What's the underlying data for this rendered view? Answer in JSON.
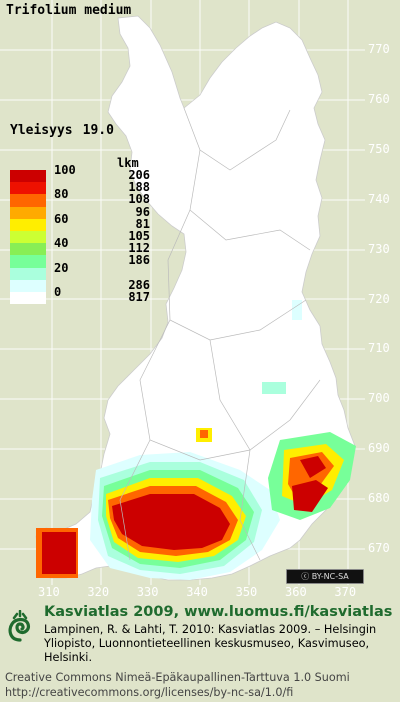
{
  "species": "Trifolium medium",
  "frequency": {
    "label": "Yleisyys",
    "value": "19.0"
  },
  "legend": {
    "count_header": "lkm",
    "classes": [
      {
        "pct": "100",
        "count": "206",
        "color": "#cc0000"
      },
      {
        "pct": "",
        "count": "188",
        "color": "#ee1100"
      },
      {
        "pct": "80",
        "count": "108",
        "color": "#ff6600"
      },
      {
        "pct": "",
        "count": "96",
        "color": "#ffaa00"
      },
      {
        "pct": "60",
        "count": "81",
        "color": "#ffee00"
      },
      {
        "pct": "",
        "count": "105",
        "color": "#ccff33"
      },
      {
        "pct": "40",
        "count": "112",
        "color": "#88ee55"
      },
      {
        "pct": "",
        "count": "186",
        "color": "#77ff99"
      },
      {
        "pct": "20",
        "count": "",
        "color": "#aaffdd"
      },
      {
        "pct": "",
        "count": "286",
        "color": "#ddffff"
      },
      {
        "pct": "0",
        "count": "817",
        "color": "#ffffff"
      }
    ]
  },
  "grid": {
    "northing_labels": [
      "770",
      "760",
      "750",
      "740",
      "730",
      "720",
      "710",
      "700",
      "690",
      "680",
      "670"
    ],
    "easting_labels": [
      "310",
      "320",
      "330",
      "340",
      "350",
      "360",
      "370"
    ]
  },
  "colors": {
    "background": "#dfe4ca",
    "brand_green": "#1f6b2e"
  },
  "badge": "BY-NC-SA",
  "brand": "Kasviatlas 2009, www.luomus.fi/kasviatlas",
  "citation": "Lampinen, R. & Lahti, T. 2010: Kasviatlas 2009. – Helsingin Yliopisto, Luonnontieteellinen keskusmuseo, Kasvimuseo, Helsinki.",
  "license_line1": "Creative Commons Nimeä-Epäkaupallinen-Tarttuva 1.0 Suomi",
  "license_line2": "http://creativecommons.org/licenses/by-nc-sa/1.0/fi"
}
